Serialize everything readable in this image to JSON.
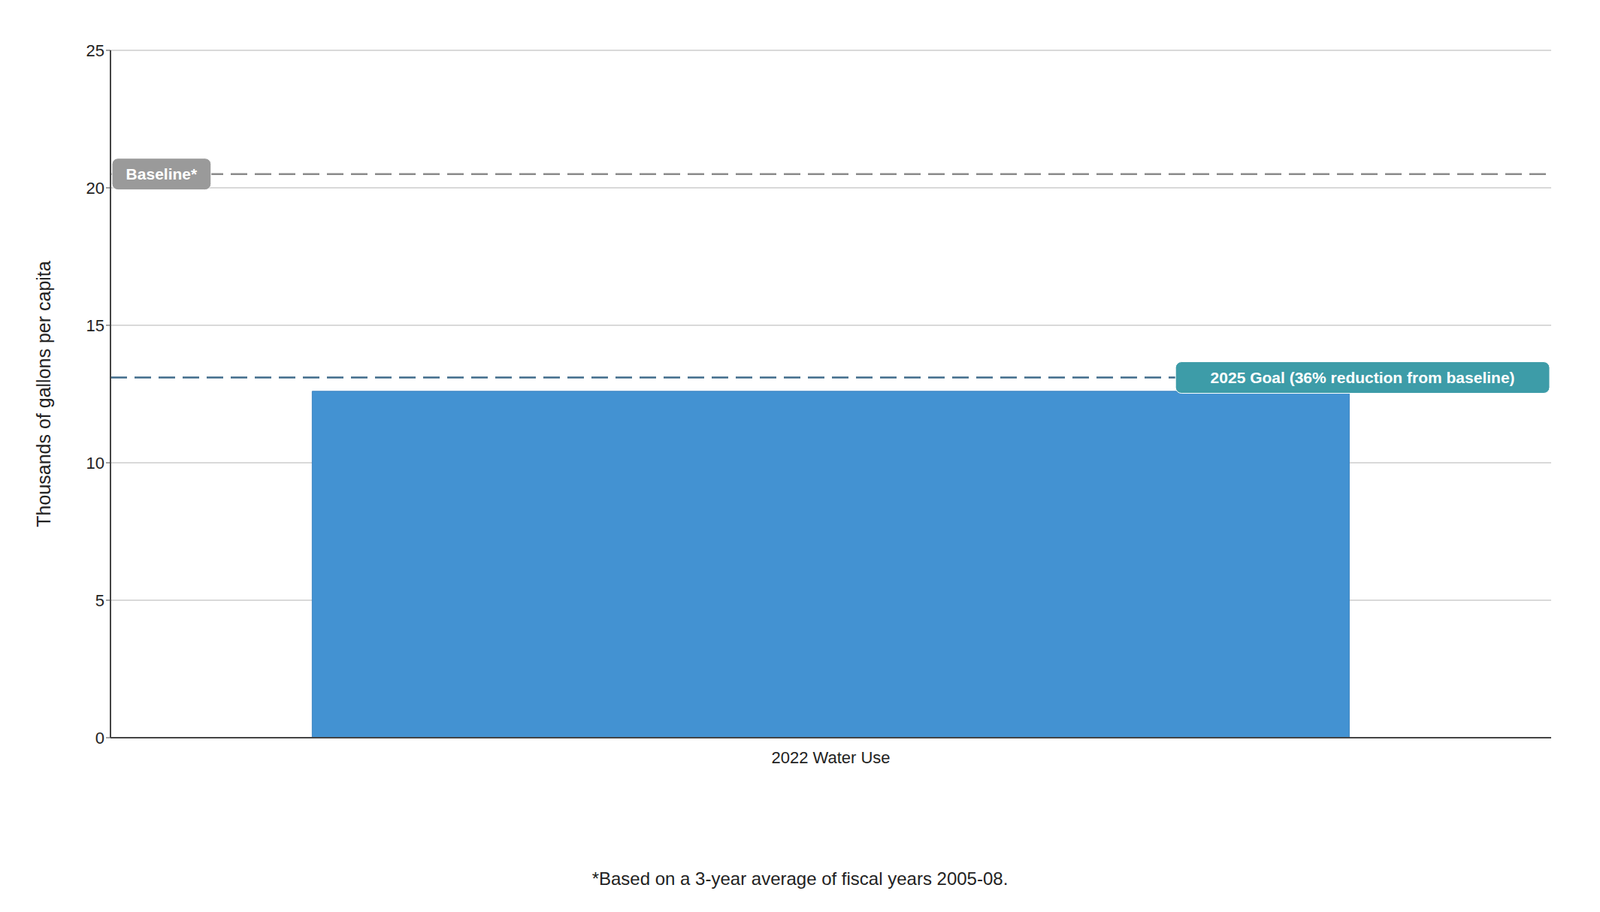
{
  "chart_data": {
    "type": "bar",
    "categories": [
      "2022 Water Use"
    ],
    "values": [
      12.6
    ],
    "color": "#4392d2",
    "ylim": [
      0,
      25
    ],
    "yticks": [
      0,
      5,
      10,
      15,
      20,
      25
    ],
    "grid": true,
    "y_label": "Thousands of gallons per capita",
    "reference_lines": [
      {
        "label": "Baseline*",
        "value": 20.5,
        "color": "#9a9a9a"
      },
      {
        "label": "2025 Goal (36% reduction from baseline)",
        "value": 13.1,
        "color": "#3d9ca8"
      }
    ],
    "footnote": "*Based on a 3-year average of fiscal years 2005-08."
  }
}
